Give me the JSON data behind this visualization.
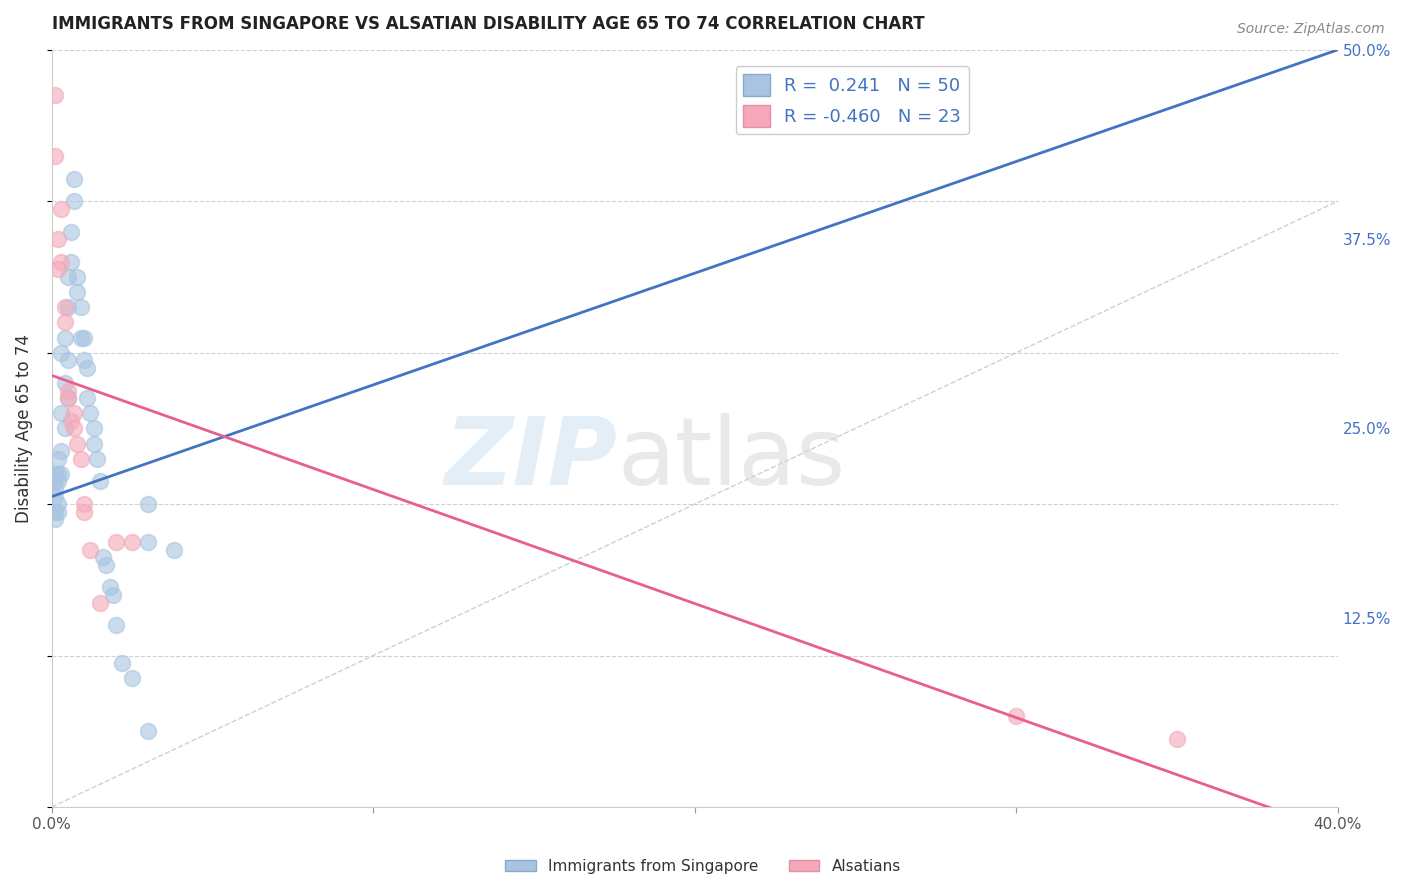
{
  "title": "IMMIGRANTS FROM SINGAPORE VS ALSATIAN DISABILITY AGE 65 TO 74 CORRELATION CHART",
  "source": "Source: ZipAtlas.com",
  "ylabel": "Disability Age 65 to 74",
  "xlim": [
    0.0,
    0.4
  ],
  "ylim": [
    0.0,
    0.5
  ],
  "xticks": [
    0.0,
    0.1,
    0.2,
    0.3,
    0.4
  ],
  "xtick_labels": [
    "0.0%",
    "",
    "",
    "",
    "40.0%"
  ],
  "yticks": [
    0.0,
    0.125,
    0.25,
    0.375,
    0.5
  ],
  "ytick_labels": [
    "",
    "12.5%",
    "25.0%",
    "37.5%",
    "50.0%"
  ],
  "blue_R": 0.241,
  "blue_N": 50,
  "pink_R": -0.46,
  "pink_N": 23,
  "blue_color": "#a8c4e0",
  "pink_color": "#f4a8b8",
  "blue_line_color": "#4472c4",
  "pink_line_color": "#e8608a",
  "diag_line_color": "#b0c8e0",
  "legend_label_blue": "Immigrants from Singapore",
  "legend_label_pink": "Alsatians",
  "blue_line_x0": 0.0,
  "blue_line_y0": 0.205,
  "blue_line_x1": 0.4,
  "blue_line_y1": 0.5,
  "pink_line_x0": 0.0,
  "pink_line_y0": 0.285,
  "pink_line_x1": 0.385,
  "pink_line_y1": -0.005,
  "blue_scatter_x": [
    0.001,
    0.001,
    0.001,
    0.001,
    0.001,
    0.001,
    0.002,
    0.002,
    0.002,
    0.002,
    0.002,
    0.003,
    0.003,
    0.003,
    0.003,
    0.004,
    0.004,
    0.004,
    0.005,
    0.005,
    0.005,
    0.005,
    0.006,
    0.006,
    0.007,
    0.007,
    0.008,
    0.008,
    0.009,
    0.009,
    0.01,
    0.01,
    0.011,
    0.011,
    0.012,
    0.013,
    0.013,
    0.014,
    0.015,
    0.016,
    0.017,
    0.018,
    0.019,
    0.02,
    0.022,
    0.025,
    0.03,
    0.038,
    0.03,
    0.03
  ],
  "blue_scatter_y": [
    0.22,
    0.215,
    0.21,
    0.205,
    0.195,
    0.19,
    0.23,
    0.22,
    0.215,
    0.2,
    0.195,
    0.3,
    0.26,
    0.235,
    0.22,
    0.31,
    0.28,
    0.25,
    0.35,
    0.33,
    0.295,
    0.27,
    0.38,
    0.36,
    0.415,
    0.4,
    0.35,
    0.34,
    0.33,
    0.31,
    0.31,
    0.295,
    0.29,
    0.27,
    0.26,
    0.25,
    0.24,
    0.23,
    0.215,
    0.165,
    0.16,
    0.145,
    0.14,
    0.12,
    0.095,
    0.085,
    0.175,
    0.17,
    0.2,
    0.05
  ],
  "pink_scatter_x": [
    0.001,
    0.001,
    0.002,
    0.002,
    0.003,
    0.003,
    0.004,
    0.004,
    0.005,
    0.005,
    0.006,
    0.007,
    0.007,
    0.008,
    0.009,
    0.01,
    0.01,
    0.012,
    0.015,
    0.02,
    0.025,
    0.3,
    0.35
  ],
  "pink_scatter_y": [
    0.47,
    0.43,
    0.375,
    0.355,
    0.395,
    0.36,
    0.33,
    0.32,
    0.275,
    0.27,
    0.255,
    0.26,
    0.25,
    0.24,
    0.23,
    0.2,
    0.195,
    0.17,
    0.135,
    0.175,
    0.175,
    0.06,
    0.045
  ]
}
